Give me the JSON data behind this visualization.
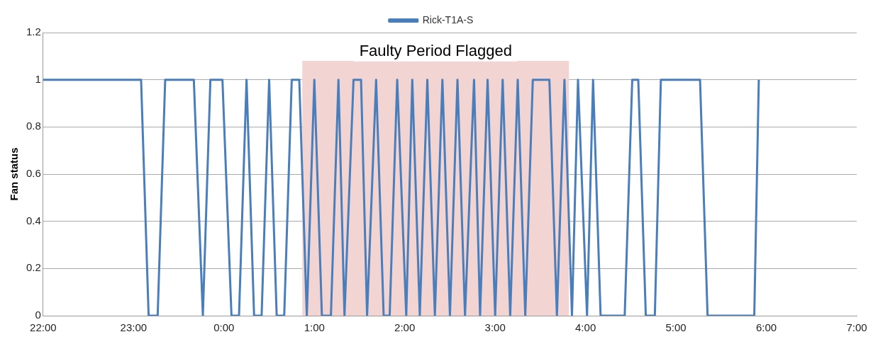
{
  "chart_data": {
    "type": "line",
    "ylabel": "Fan status",
    "legend": "top",
    "grid": "y",
    "marker": "none",
    "line_style": "solid",
    "xlim": [
      "--01-01T22:00",
      "--01-02T07:00"
    ],
    "xticks": [
      {
        "value": "--01-01T22:00",
        "label": "22:00"
      },
      {
        "value": "--01-01T23:00",
        "label": "23:00"
      },
      {
        "value": "--01-02T00:00",
        "label": "0:00"
      },
      {
        "value": "--01-02T01:00",
        "label": "1:00"
      },
      {
        "value": "--01-02T02:00",
        "label": "2:00"
      },
      {
        "value": "--01-02T03:00",
        "label": "3:00"
      },
      {
        "value": "--01-02T04:00",
        "label": "4:00"
      },
      {
        "value": "--01-02T05:00",
        "label": "5:00"
      },
      {
        "value": "--01-02T06:00",
        "label": "6:00"
      },
      {
        "value": "--01-02T07:00",
        "label": "7:00"
      }
    ],
    "ylim": [
      0,
      1.2
    ],
    "yticks": [
      0,
      0.2,
      0.4,
      0.6,
      0.8,
      1,
      1.2
    ],
    "bands": [
      {
        "axis": "x",
        "from": "--01-02T00:52",
        "to": "--01-02T03:49",
        "label": "Faulty Period Flagged",
        "color": "#f2d5d3"
      }
    ],
    "series": [
      {
        "name": "Rick-T1A-S",
        "color": "#4a7ebb",
        "x": [
          "--01-01T22:00",
          "--01-01T23:05",
          "--01-01T23:10",
          "--01-01T23:16",
          "--01-01T23:21",
          "--01-01T23:40",
          "--01-01T23:46",
          "--01-01T23:51",
          "--01-01T23:59",
          "--01-02T00:05",
          "--01-02T00:10",
          "--01-02T00:15",
          "--01-02T00:20",
          "--01-02T00:25",
          "--01-02T00:30",
          "--01-02T00:35",
          "--01-02T00:40",
          "--01-02T00:45",
          "--01-02T00:50",
          "--01-02T00:55",
          "--01-02T01:00",
          "--01-02T01:05",
          "--01-02T01:11",
          "--01-02T01:16",
          "--01-02T01:20",
          "--01-02T01:26",
          "--01-02T01:31",
          "--01-02T01:35",
          "--01-02T01:41",
          "--01-02T01:46",
          "--01-02T01:50",
          "--01-02T01:55",
          "--01-02T02:01",
          "--01-02T02:05",
          "--01-02T02:10",
          "--01-02T02:15",
          "--01-02T02:20",
          "--01-02T02:25",
          "--01-02T02:30",
          "--01-02T02:35",
          "--01-02T02:40",
          "--01-02T02:46",
          "--01-02T02:50",
          "--01-02T02:55",
          "--01-02T03:00",
          "--01-02T03:05",
          "--01-02T03:10",
          "--01-02T03:15",
          "--01-02T03:20",
          "--01-02T03:25",
          "--01-02T03:36",
          "--01-02T03:41",
          "--01-02T03:46",
          "--01-02T03:51",
          "--01-02T03:55",
          "--01-02T04:01",
          "--01-02T04:05",
          "--01-02T04:10",
          "--01-02T04:26",
          "--01-02T04:31",
          "--01-02T04:35",
          "--01-02T04:40",
          "--01-02T04:46",
          "--01-02T04:50",
          "--01-02T05:16",
          "--01-02T05:21",
          "--01-02T05:52",
          "--01-02T05:55"
        ],
        "values": [
          1,
          1,
          0,
          0,
          1,
          1,
          0,
          1,
          1,
          0,
          0,
          1,
          0,
          0,
          1,
          0,
          0,
          1,
          1,
          0,
          1,
          0,
          0,
          1,
          0,
          1,
          1,
          0,
          1,
          0,
          0,
          1,
          0,
          1,
          0,
          1,
          0,
          1,
          0,
          1,
          0,
          1,
          0,
          1,
          0,
          1,
          0,
          1,
          0,
          1,
          1,
          0,
          1,
          0,
          1,
          0,
          1,
          0,
          0,
          1,
          1,
          0,
          0,
          1,
          1,
          0,
          0,
          1
        ]
      }
    ]
  }
}
